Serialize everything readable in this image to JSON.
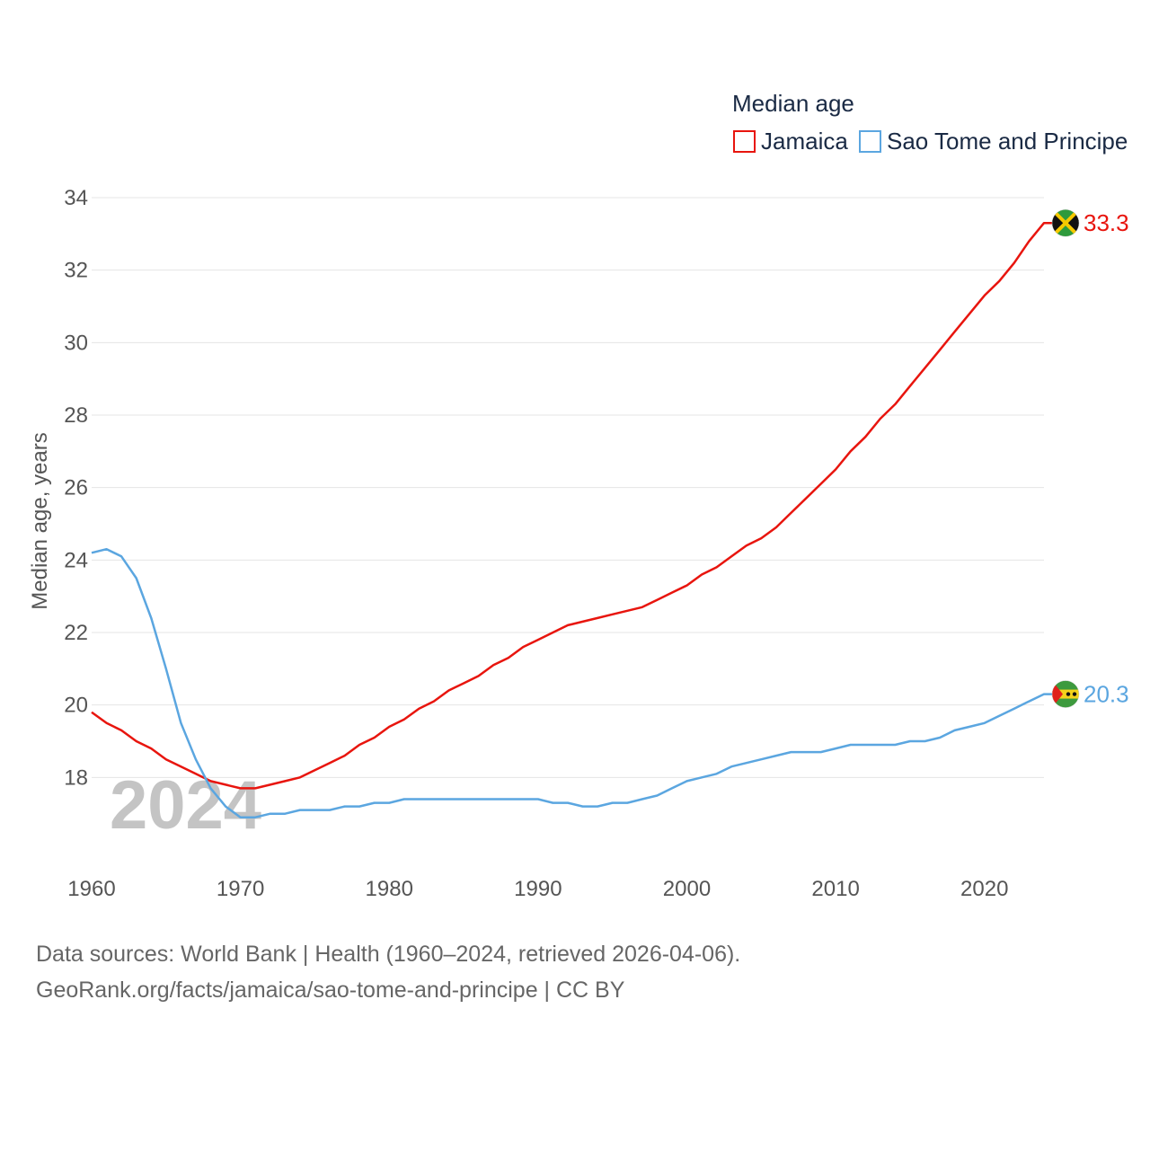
{
  "chart_data": {
    "type": "line",
    "title": "Median age",
    "xlabel": "",
    "ylabel": "Median age, years",
    "xlim": [
      1960,
      2024
    ],
    "ylim": [
      16,
      34
    ],
    "yticks": [
      18,
      20,
      22,
      24,
      26,
      28,
      30,
      32,
      34
    ],
    "xticks": [
      1960,
      1970,
      1980,
      1990,
      2000,
      2010,
      2020
    ],
    "grid": true,
    "legend_position": "top-right",
    "year_label": "2024",
    "x": [
      1960,
      1961,
      1962,
      1963,
      1964,
      1965,
      1966,
      1967,
      1968,
      1969,
      1970,
      1971,
      1972,
      1973,
      1974,
      1975,
      1976,
      1977,
      1978,
      1979,
      1980,
      1981,
      1982,
      1983,
      1984,
      1985,
      1986,
      1987,
      1988,
      1989,
      1990,
      1991,
      1992,
      1993,
      1994,
      1995,
      1996,
      1997,
      1998,
      1999,
      2000,
      2001,
      2002,
      2003,
      2004,
      2005,
      2006,
      2007,
      2008,
      2009,
      2010,
      2011,
      2012,
      2013,
      2014,
      2015,
      2016,
      2017,
      2018,
      2019,
      2020,
      2021,
      2022,
      2023,
      2024
    ],
    "series": [
      {
        "name": "Jamaica",
        "color": "#e8150e",
        "end_label": "33.3",
        "flag": "jamaica-flag",
        "values": [
          19.8,
          19.5,
          19.3,
          19.0,
          18.8,
          18.5,
          18.3,
          18.1,
          17.9,
          17.8,
          17.7,
          17.7,
          17.8,
          17.9,
          18.0,
          18.2,
          18.4,
          18.6,
          18.9,
          19.1,
          19.4,
          19.6,
          19.9,
          20.1,
          20.4,
          20.6,
          20.8,
          21.1,
          21.3,
          21.6,
          21.8,
          22.0,
          22.2,
          22.3,
          22.4,
          22.5,
          22.6,
          22.7,
          22.9,
          23.1,
          23.3,
          23.6,
          23.8,
          24.1,
          24.4,
          24.6,
          24.9,
          25.3,
          25.7,
          26.1,
          26.5,
          27.0,
          27.4,
          27.9,
          28.3,
          28.8,
          29.3,
          29.8,
          30.3,
          30.8,
          31.3,
          31.7,
          32.2,
          32.8,
          33.3
        ]
      },
      {
        "name": "Sao Tome and Principe",
        "color": "#5ba6e0",
        "end_label": "20.3",
        "flag": "sao-tome-flag",
        "values": [
          24.2,
          24.3,
          24.1,
          23.5,
          22.4,
          21.0,
          19.5,
          18.5,
          17.7,
          17.2,
          16.9,
          16.9,
          17.0,
          17.0,
          17.1,
          17.1,
          17.1,
          17.2,
          17.2,
          17.3,
          17.3,
          17.4,
          17.4,
          17.4,
          17.4,
          17.4,
          17.4,
          17.4,
          17.4,
          17.4,
          17.4,
          17.3,
          17.3,
          17.2,
          17.2,
          17.3,
          17.3,
          17.4,
          17.5,
          17.7,
          17.9,
          18.0,
          18.1,
          18.3,
          18.4,
          18.5,
          18.6,
          18.7,
          18.7,
          18.7,
          18.8,
          18.9,
          18.9,
          18.9,
          18.9,
          19.0,
          19.0,
          19.1,
          19.3,
          19.4,
          19.5,
          19.7,
          19.9,
          20.1,
          20.3
        ]
      }
    ]
  },
  "source": {
    "line1": "Data sources: World Bank | Health (1960–2024, retrieved 2026-04-06).",
    "line2": "GeoRank.org/facts/jamaica/sao-tome-and-principe | CC BY"
  }
}
